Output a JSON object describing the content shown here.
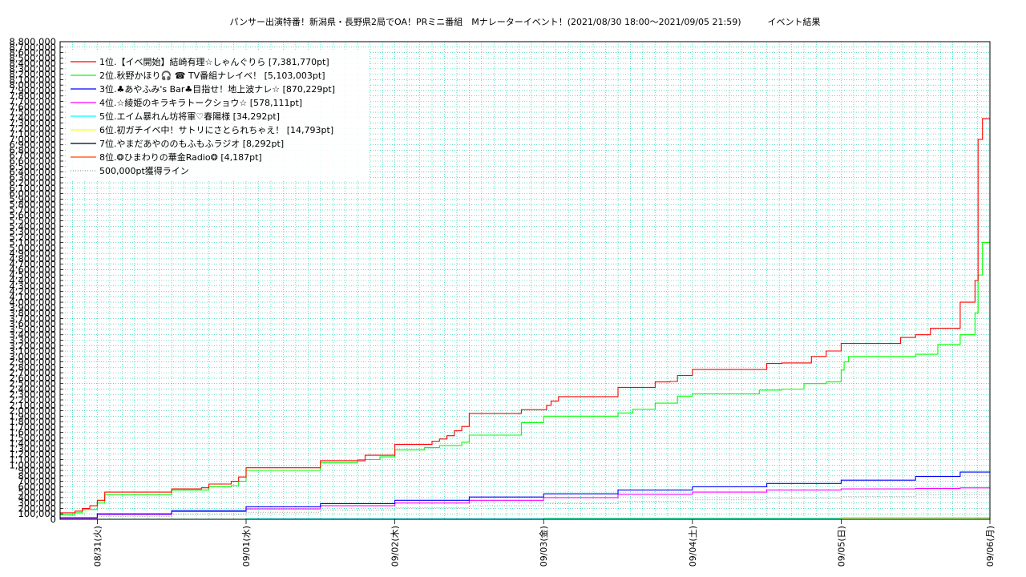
{
  "chart_data": {
    "type": "line",
    "title": "パンサー出演特番！新潟県・長野県2局でOA！PRミニ番組　Mナレーターイベント！(2021/08/30 18:00～2021/09/05 21:59)　　　イベント結果",
    "xlabel": "",
    "ylabel": "",
    "x_ticks": [
      "08/31(火)",
      "09/01(水)",
      "09/02(木)",
      "09/03(金)",
      "09/04(土)",
      "09/05(日)",
      "09/06(月)"
    ],
    "xlim": [
      -0.25,
      6.0
    ],
    "ylim": [
      0,
      8800000
    ],
    "ytick_step": 100000,
    "ytick_labels_start": 100000,
    "grid": true,
    "legend_position": "top-left",
    "series": [
      {
        "name": "1位.【イベ開始】結崎有理☆しゃんぐりら [7,381,770pt]",
        "color": "#ff0000",
        "x": [
          -0.25,
          -0.15,
          -0.12,
          -0.1,
          -0.05,
          0,
          0.05,
          0.45,
          0.5,
          0.7,
          0.75,
          0.9,
          0.95,
          1.0,
          1.4,
          1.5,
          1.8,
          2.0,
          2.2,
          2.25,
          2.3,
          2.35,
          2.4,
          2.45,
          2.5,
          2.7,
          2.85,
          3.0,
          3.02,
          3.05,
          3.1,
          3.5,
          3.6,
          3.75,
          3.8,
          3.85,
          3.9,
          4.0,
          4.5,
          4.6,
          4.8,
          4.9,
          5.0,
          5.05,
          5.4,
          5.5,
          5.6,
          5.8,
          5.9,
          5.92,
          5.95,
          5.97,
          6.0
        ],
        "y": [
          120000,
          150000,
          150000,
          200000,
          250000,
          350000,
          500000,
          500000,
          560000,
          580000,
          650000,
          700000,
          780000,
          950000,
          950000,
          1080000,
          1180000,
          1380000,
          1380000,
          1440000,
          1480000,
          1540000,
          1630000,
          1710000,
          1950000,
          1950000,
          2020000,
          2020000,
          2100000,
          2180000,
          2260000,
          2430000,
          2430000,
          2530000,
          2530000,
          2540000,
          2650000,
          2760000,
          2870000,
          2880000,
          3000000,
          3100000,
          3240000,
          3240000,
          3350000,
          3400000,
          3520000,
          4000000,
          4400000,
          7000000,
          7381770,
          7381770,
          7381770
        ]
      },
      {
        "name": "2位.秋野かほり🎧 ☎ TV番組ナレイベ！ [5,103,003pt]",
        "color": "#00ff00",
        "x": [
          -0.25,
          -0.15,
          -0.1,
          0,
          0.05,
          0.45,
          0.5,
          0.7,
          0.75,
          0.9,
          0.95,
          1.0,
          1.4,
          1.5,
          1.75,
          1.9,
          2.0,
          2.2,
          2.3,
          2.45,
          2.5,
          2.85,
          3.0,
          3.5,
          3.6,
          3.75,
          3.9,
          4.0,
          4.45,
          4.6,
          4.75,
          4.9,
          5.0,
          5.02,
          5.05,
          5.45,
          5.5,
          5.65,
          5.8,
          5.9,
          5.92,
          5.95,
          6.0
        ],
        "y": [
          80000,
          120000,
          180000,
          300000,
          450000,
          450000,
          540000,
          540000,
          600000,
          620000,
          700000,
          900000,
          900000,
          1040000,
          1100000,
          1150000,
          1280000,
          1320000,
          1360000,
          1420000,
          1550000,
          1780000,
          1900000,
          1960000,
          2030000,
          2140000,
          2270000,
          2310000,
          2380000,
          2400000,
          2500000,
          2530000,
          2750000,
          2900000,
          3000000,
          3000000,
          3040000,
          3220000,
          3400000,
          3800000,
          4500000,
          5103003,
          5103003
        ]
      },
      {
        "name": "3位.♣あやふみ's Bar♣目指せ！地上波ナレ☆ [870,229pt]",
        "color": "#0000ff",
        "x": [
          -0.25,
          0,
          0.5,
          1.0,
          1.5,
          2.0,
          2.5,
          3.0,
          3.5,
          4.0,
          4.5,
          5.0,
          5.5,
          5.8,
          6.0
        ],
        "y": [
          30000,
          100000,
          160000,
          230000,
          290000,
          350000,
          410000,
          470000,
          540000,
          600000,
          660000,
          720000,
          790000,
          870229,
          870229
        ]
      },
      {
        "name": "4位.☆綾姫のキラキラトークショウ☆ [578,111pt]",
        "color": "#ff00ff",
        "x": [
          -0.25,
          0,
          0.5,
          1.0,
          1.5,
          2.0,
          2.5,
          3.0,
          3.5,
          4.0,
          4.5,
          5.0,
          5.5,
          5.8,
          6.0
        ],
        "y": [
          20000,
          90000,
          140000,
          190000,
          250000,
          300000,
          350000,
          400000,
          460000,
          500000,
          540000,
          560000,
          570000,
          578111,
          578111
        ]
      },
      {
        "name": "5位.エイム暴れん坊将軍♡春陽様 [34,292pt]",
        "color": "#00ffff",
        "x": [
          -0.25,
          1.0,
          3.0,
          5.0,
          6.0
        ],
        "y": [
          2000,
          10000,
          20000,
          30000,
          34292
        ]
      },
      {
        "name": "6位.初ガチイベ中！サトリにさとられちゃえ！ [14,793pt]",
        "color": "#ffff00",
        "x": [
          -0.25,
          2.0,
          4.0,
          6.0
        ],
        "y": [
          1000,
          6000,
          11000,
          14793
        ]
      },
      {
        "name": "7位.やまだあやののもふもふラジオ [8,292pt]",
        "color": "#000000",
        "x": [
          -0.25,
          3.0,
          5.5,
          5.9,
          6.0
        ],
        "y": [
          0,
          2000,
          5000,
          8292,
          8292
        ]
      },
      {
        "name": "8位.❂ひまわりの華金Radio❂ [4,187pt]",
        "color": "#ff4500",
        "x": [
          -0.25,
          3.0,
          6.0
        ],
        "y": [
          0,
          2000,
          4187
        ]
      }
    ],
    "reference_line": {
      "name": "500,000pt獲得ライン",
      "color": "#999999",
      "x": [
        -0.25,
        0,
        0.5,
        1.0,
        1.5,
        2.0,
        2.5,
        3.0,
        3.5,
        4.0,
        4.5,
        5.0,
        5.5,
        6.0
      ],
      "y": [
        10000,
        50000,
        90000,
        130000,
        170000,
        210000,
        250000,
        290000,
        330000,
        360000,
        390000,
        420000,
        450000,
        470000
      ]
    }
  }
}
